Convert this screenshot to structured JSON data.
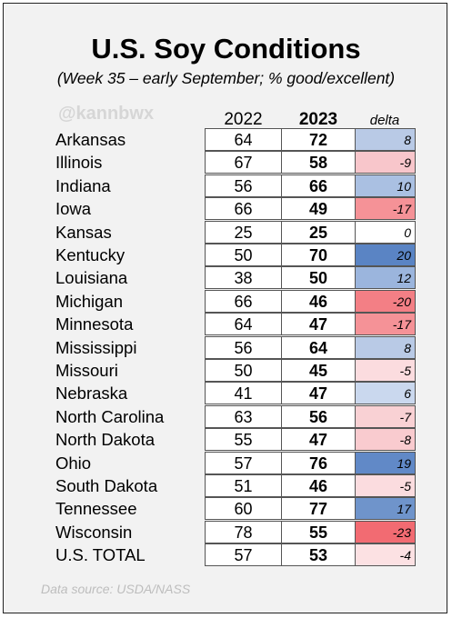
{
  "title": "U.S. Soy Conditions",
  "subtitle": "(Week 35 – early September; % good/excellent)",
  "watermark": "@kannbwx",
  "headers": {
    "y2022": "2022",
    "y2023": "2023",
    "delta": "delta"
  },
  "rows": [
    {
      "state": "Arkansas",
      "v2022": "64",
      "v2023": "72",
      "delta": "8",
      "color": "#b9cae6"
    },
    {
      "state": "Illinois",
      "v2022": "67",
      "v2023": "58",
      "delta": "-9",
      "color": "#f8c6cb"
    },
    {
      "state": "Indiana",
      "v2022": "56",
      "v2023": "66",
      "delta": "10",
      "color": "#aac0e2"
    },
    {
      "state": "Iowa",
      "v2022": "66",
      "v2023": "49",
      "delta": "-17",
      "color": "#f59297"
    },
    {
      "state": "Kansas",
      "v2022": "25",
      "v2023": "25",
      "delta": "0",
      "color": "#ffffff"
    },
    {
      "state": "Kentucky",
      "v2022": "50",
      "v2023": "70",
      "delta": "20",
      "color": "#5a84c4"
    },
    {
      "state": "Louisiana",
      "v2022": "38",
      "v2023": "50",
      "delta": "12",
      "color": "#9bb5dd"
    },
    {
      "state": "Michigan",
      "v2022": "66",
      "v2023": "46",
      "delta": "-20",
      "color": "#f37f85"
    },
    {
      "state": "Minnesota",
      "v2022": "64",
      "v2023": "47",
      "delta": "-17",
      "color": "#f59297"
    },
    {
      "state": "Mississippi",
      "v2022": "56",
      "v2023": "64",
      "delta": "8",
      "color": "#b9cae6"
    },
    {
      "state": "Missouri",
      "v2022": "50",
      "v2023": "45",
      "delta": "-5",
      "color": "#fbdcdf"
    },
    {
      "state": "Nebraska",
      "v2022": "41",
      "v2023": "47",
      "delta": "6",
      "color": "#cad8ee"
    },
    {
      "state": "North Carolina",
      "v2022": "63",
      "v2023": "56",
      "delta": "-7",
      "color": "#f9d1d4"
    },
    {
      "state": "North Dakota",
      "v2022": "55",
      "v2023": "47",
      "delta": "-8",
      "color": "#f9cbcf"
    },
    {
      "state": "Ohio",
      "v2022": "57",
      "v2023": "76",
      "delta": "19",
      "color": "#6189c7"
    },
    {
      "state": "South Dakota",
      "v2022": "51",
      "v2023": "46",
      "delta": "-5",
      "color": "#fbdcdf"
    },
    {
      "state": "Tennessee",
      "v2022": "60",
      "v2023": "77",
      "delta": "17",
      "color": "#6f94cb"
    },
    {
      "state": "Wisconsin",
      "v2022": "78",
      "v2023": "55",
      "delta": "-23",
      "color": "#f26b72"
    },
    {
      "state": "U.S. TOTAL",
      "v2022": "57",
      "v2023": "53",
      "delta": "-4",
      "color": "#fce1e3"
    }
  ],
  "source": "Data source: USDA/NASS"
}
